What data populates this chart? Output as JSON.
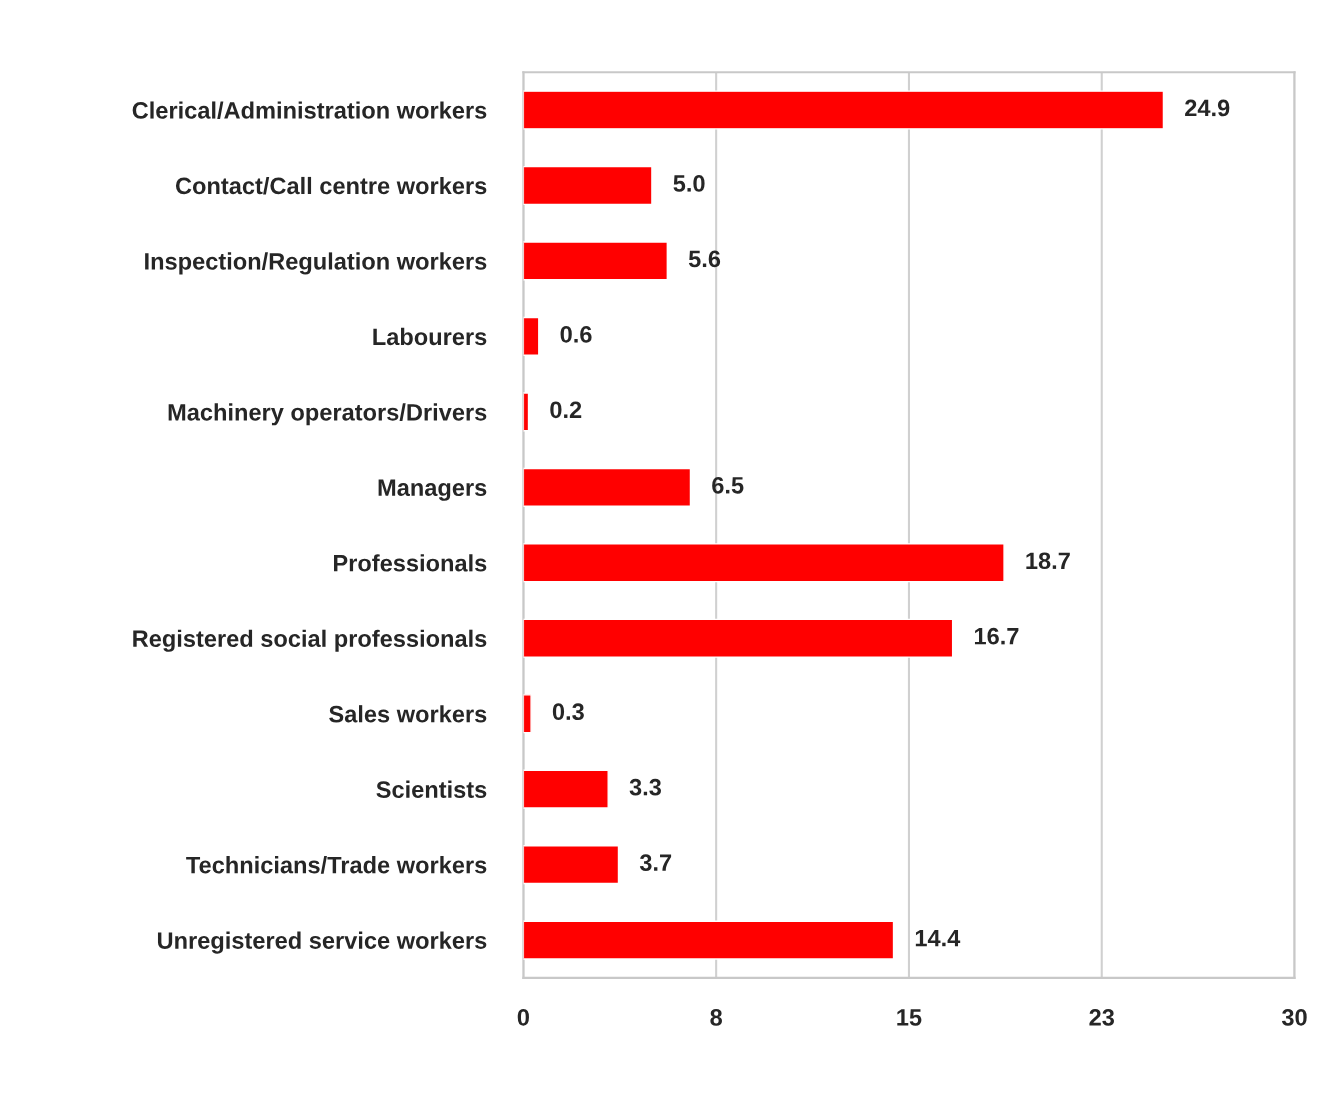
{
  "chart_data": {
    "type": "bar",
    "orientation": "horizontal",
    "categories": [
      "Clerical/Administration workers",
      "Contact/Call centre workers",
      "Inspection/Regulation workers",
      "Labourers",
      "Machinery operators/Drivers",
      "Managers",
      "Professionals",
      "Registered social professionals",
      "Sales workers",
      "Scientists",
      "Technicians/Trade workers",
      "Unregistered service workers"
    ],
    "values": [
      24.9,
      5.0,
      5.6,
      0.6,
      0.2,
      6.5,
      18.7,
      16.7,
      0.3,
      3.3,
      3.7,
      14.4
    ],
    "value_labels": [
      "24.9",
      "5.0",
      "5.6",
      "0.6",
      "0.2",
      "6.5",
      "18.7",
      "16.7",
      "0.3",
      "3.3",
      "3.7",
      "14.4"
    ],
    "color": "#ff0000",
    "xlim": [
      0,
      30
    ],
    "xticks": [
      0,
      {
        "value": 7.5,
        "label": "8"
      },
      15,
      {
        "value": 22.5,
        "label": "23"
      },
      30
    ],
    "grid": "x",
    "legend": false
  }
}
